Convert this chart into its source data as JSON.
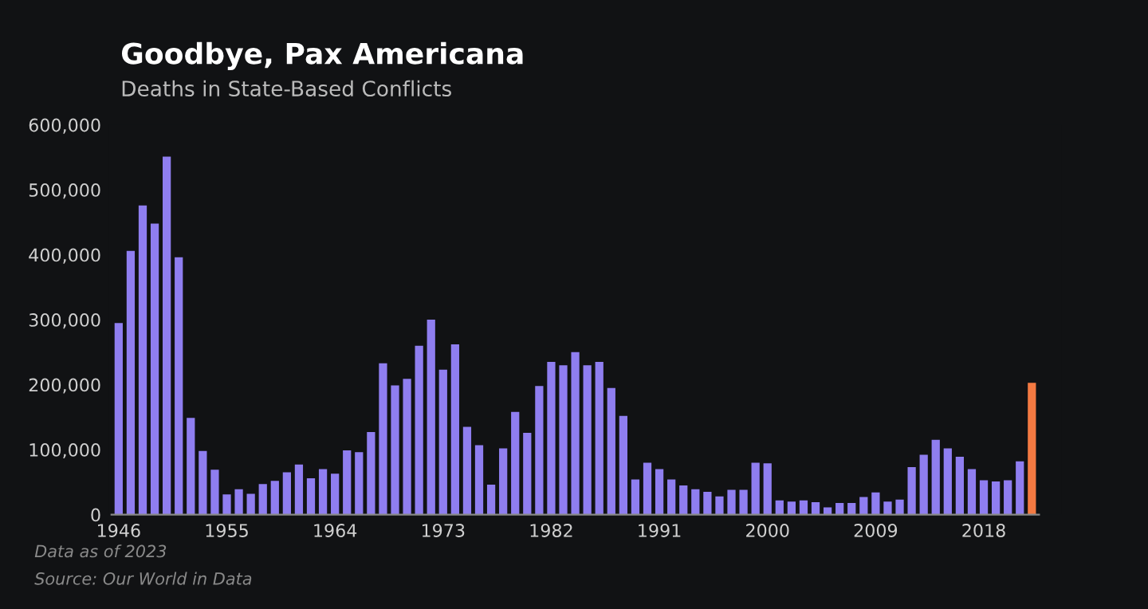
{
  "chart_data": {
    "type": "bar",
    "title": "Goodbye, Pax Americana",
    "subtitle": "Deaths in State-Based Conflicts",
    "categories": [
      "1946",
      null,
      null,
      null,
      null,
      null,
      null,
      null,
      null,
      "1955",
      null,
      null,
      null,
      null,
      null,
      null,
      null,
      null,
      "1964",
      null,
      null,
      null,
      null,
      null,
      null,
      null,
      null,
      "1973",
      null,
      null,
      null,
      null,
      null,
      null,
      null,
      null,
      "1982",
      null,
      null,
      null,
      null,
      null,
      null,
      null,
      null,
      "1991",
      null,
      null,
      null,
      null,
      null,
      null,
      null,
      null,
      "2000",
      null,
      null,
      null,
      null,
      null,
      null,
      null,
      null,
      "2009",
      null,
      null,
      null,
      null,
      null,
      null,
      null,
      null,
      "2018",
      null,
      null,
      null,
      null
    ],
    "values": [
      295000,
      406000,
      476000,
      448000,
      551000,
      396000,
      149000,
      98000,
      69000,
      31000,
      39000,
      32000,
      47000,
      52000,
      65000,
      77000,
      56000,
      70000,
      63000,
      99000,
      96000,
      127000,
      233000,
      199000,
      209000,
      260000,
      300000,
      223000,
      262000,
      135000,
      107000,
      46000,
      102000,
      158000,
      126000,
      198000,
      235000,
      230000,
      250000,
      230000,
      235000,
      195000,
      152000,
      54000,
      80000,
      70000,
      54000,
      45000,
      39000,
      35000,
      28000,
      38000,
      38000,
      80000,
      79000,
      22000,
      20000,
      22000,
      19000,
      11000,
      18000,
      18000,
      27000,
      34000,
      20000,
      23000,
      73000,
      92000,
      115000,
      102000,
      89000,
      70000,
      53000,
      51000,
      53000,
      82000,
      203000
    ],
    "colors": [
      "#8f7ef0",
      "#8f7ef0",
      "#8f7ef0",
      "#8f7ef0",
      "#8f7ef0",
      "#8f7ef0",
      "#8f7ef0",
      "#8f7ef0",
      "#8f7ef0",
      "#8f7ef0",
      "#8f7ef0",
      "#8f7ef0",
      "#8f7ef0",
      "#8f7ef0",
      "#8f7ef0",
      "#8f7ef0",
      "#8f7ef0",
      "#8f7ef0",
      "#8f7ef0",
      "#8f7ef0",
      "#8f7ef0",
      "#8f7ef0",
      "#8f7ef0",
      "#8f7ef0",
      "#8f7ef0",
      "#8f7ef0",
      "#8f7ef0",
      "#8f7ef0",
      "#8f7ef0",
      "#8f7ef0",
      "#8f7ef0",
      "#8f7ef0",
      "#8f7ef0",
      "#8f7ef0",
      "#8f7ef0",
      "#8f7ef0",
      "#8f7ef0",
      "#8f7ef0",
      "#8f7ef0",
      "#8f7ef0",
      "#8f7ef0",
      "#8f7ef0",
      "#8f7ef0",
      "#8f7ef0",
      "#8f7ef0",
      "#8f7ef0",
      "#8f7ef0",
      "#8f7ef0",
      "#8f7ef0",
      "#8f7ef0",
      "#8f7ef0",
      "#8f7ef0",
      "#8f7ef0",
      "#8f7ef0",
      "#8f7ef0",
      "#8f7ef0",
      "#8f7ef0",
      "#8f7ef0",
      "#8f7ef0",
      "#8f7ef0",
      "#8f7ef0",
      "#8f7ef0",
      "#8f7ef0",
      "#8f7ef0",
      "#8f7ef0",
      "#8f7ef0",
      "#8f7ef0",
      "#8f7ef0",
      "#8f7ef0",
      "#8f7ef0",
      "#8f7ef0",
      "#8f7ef0",
      "#8f7ef0",
      "#8f7ef0",
      "#8f7ef0",
      "#8f7ef0",
      "#f47a42"
    ],
    "ylim": [
      0,
      600000
    ],
    "yticks": [
      {
        "value": 0,
        "label": "0"
      },
      {
        "value": 100000,
        "label": "100,000"
      },
      {
        "value": 200000,
        "label": "200,000"
      },
      {
        "value": 300000,
        "label": "300,000"
      },
      {
        "value": 400000,
        "label": "400,000"
      },
      {
        "value": 500000,
        "label": "500,000"
      },
      {
        "value": 600000,
        "label": "600,000"
      }
    ],
    "grid": false,
    "annotations": [
      "Data as of 2023",
      "Source: Our World in Data"
    ]
  }
}
